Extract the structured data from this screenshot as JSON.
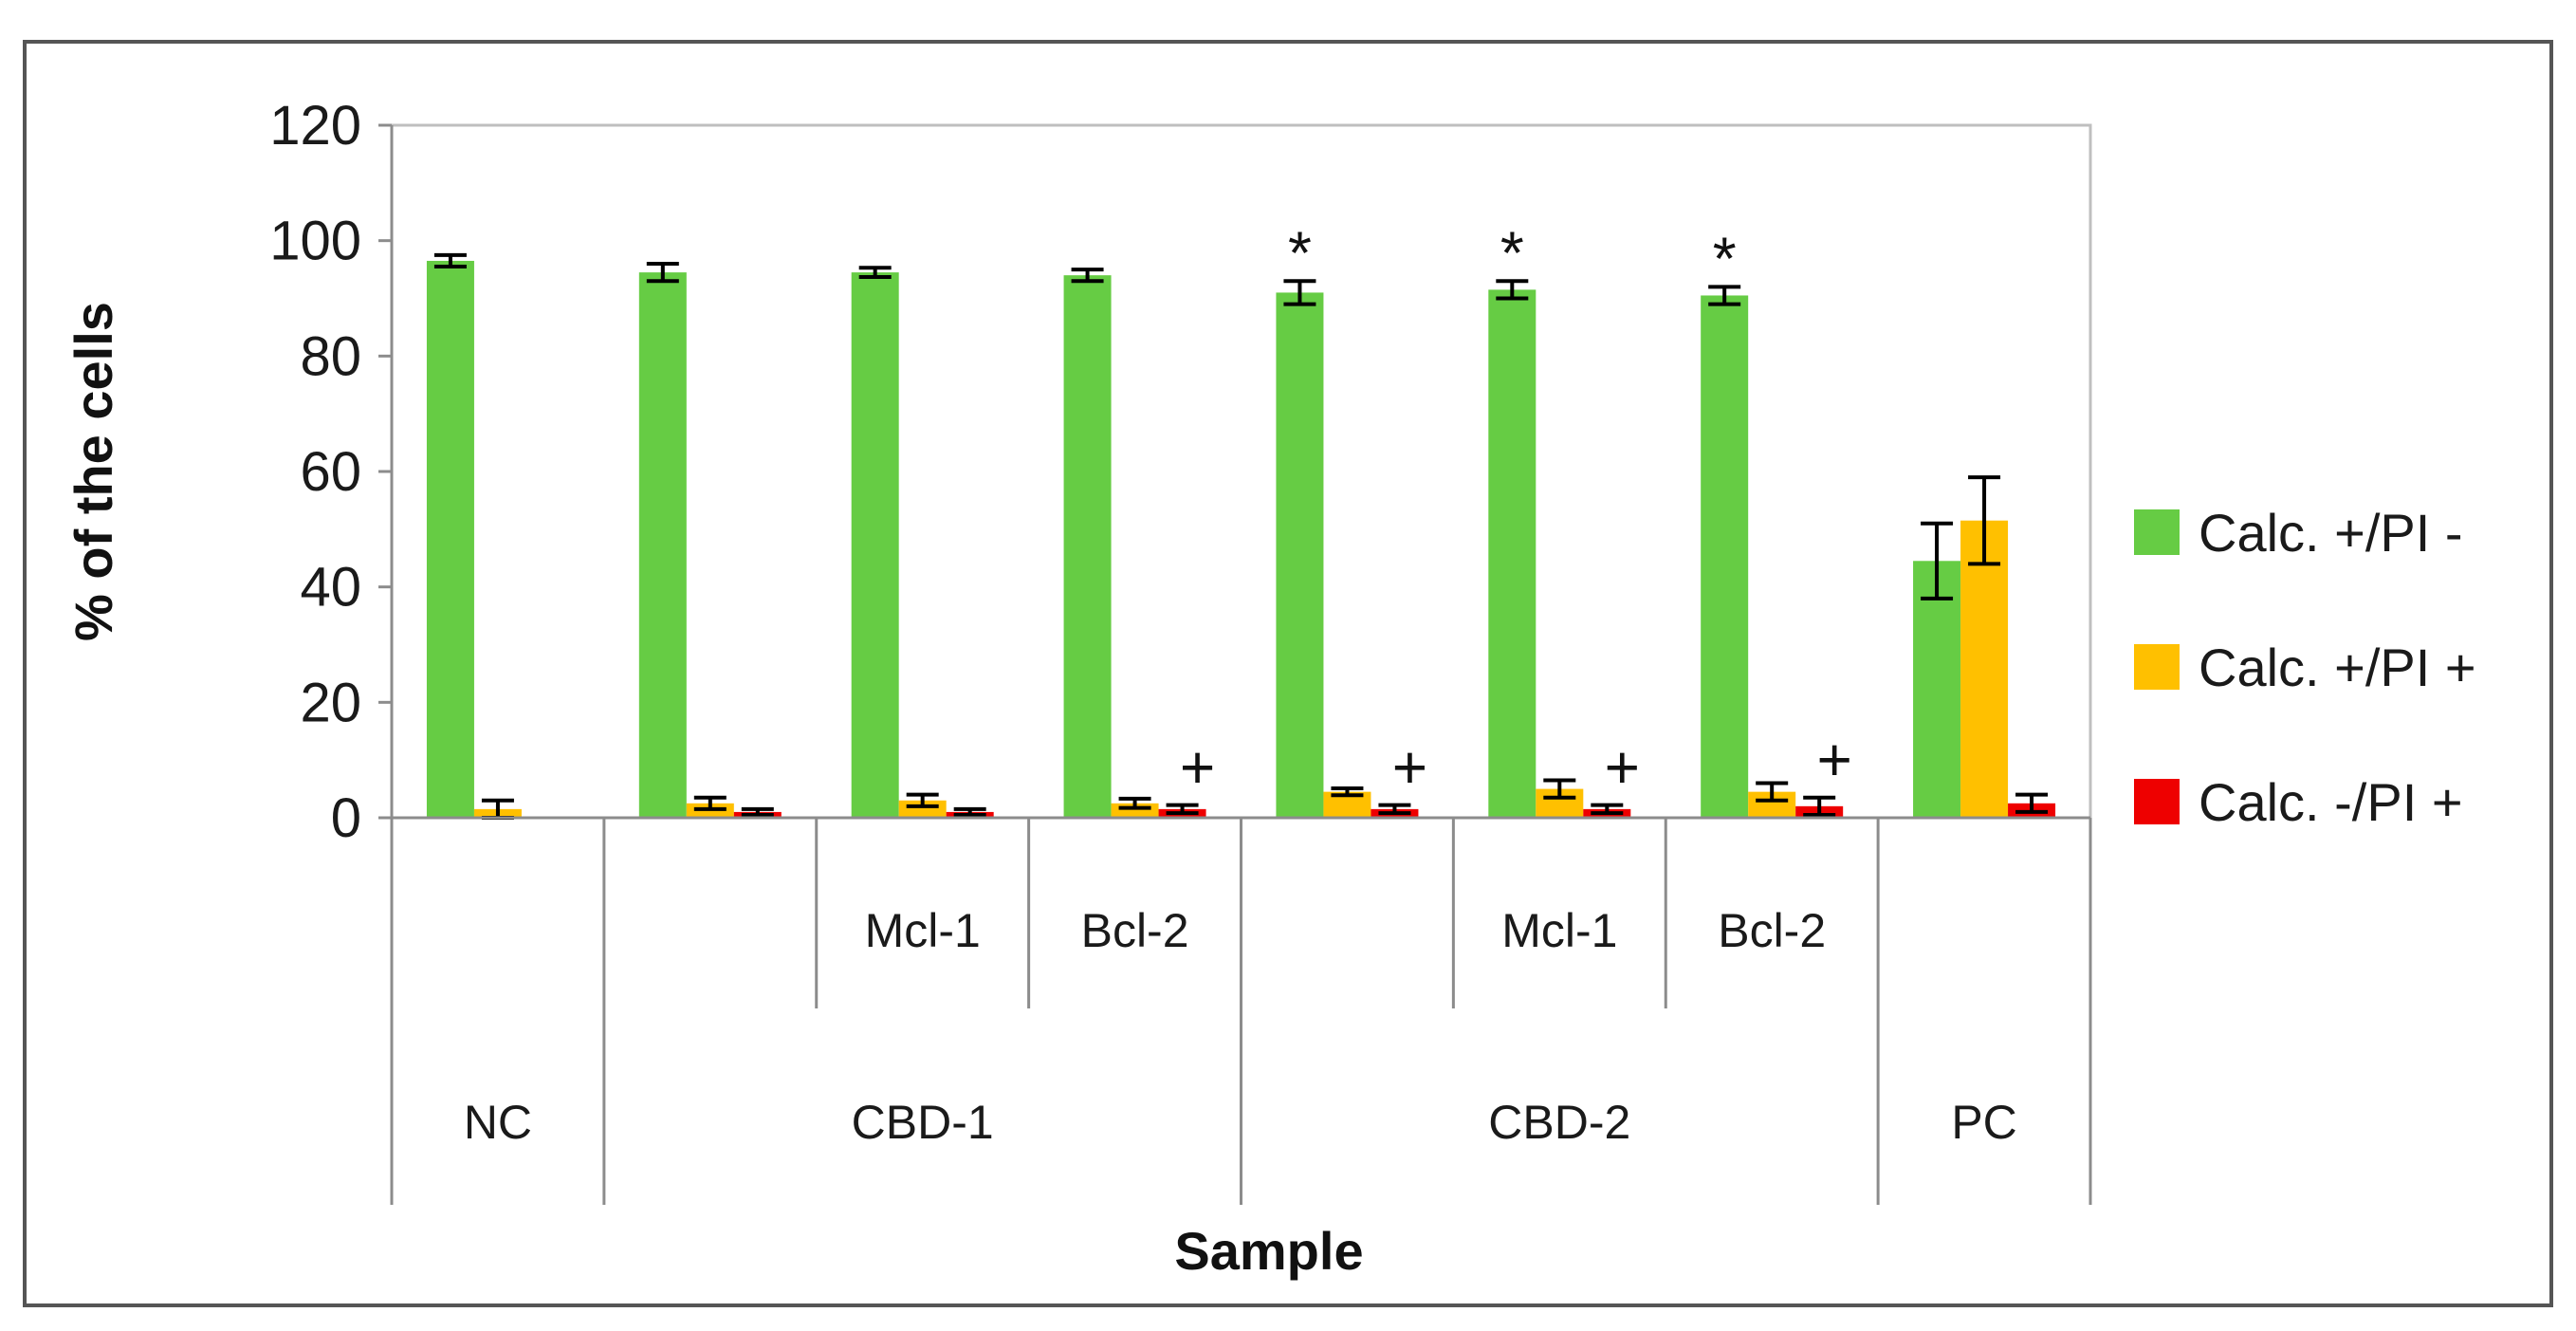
{
  "chart_data": {
    "type": "bar",
    "title": "",
    "xlabel": "Sample",
    "ylabel": "% of the cells",
    "ylim": [
      0,
      120
    ],
    "yticks": [
      0,
      20,
      40,
      60,
      80,
      100,
      120
    ],
    "grid": false,
    "legend_position": "right",
    "categories": [
      "NC",
      "CBD-1",
      "Mcl-1",
      "Bcl-2",
      "CBD-2",
      "Mcl-1",
      "Bcl-2",
      "PC"
    ],
    "category_tiers": {
      "sub_labels": [
        "",
        "",
        "Mcl-1",
        "Bcl-2",
        "",
        "Mcl-1",
        "Bcl-2",
        ""
      ],
      "groups": [
        {
          "label": "NC",
          "span": [
            0,
            0
          ]
        },
        {
          "label": "CBD-1",
          "span": [
            1,
            3
          ]
        },
        {
          "label": "CBD-2",
          "span": [
            4,
            6
          ]
        },
        {
          "label": "PC",
          "span": [
            7,
            7
          ]
        }
      ]
    },
    "series": [
      {
        "name": "Calc. +/PI -",
        "color": "#66cc44",
        "values": [
          96.5,
          94.5,
          94.5,
          94.0,
          91.0,
          91.5,
          90.5,
          44.5
        ],
        "errors": [
          1.0,
          1.5,
          0.8,
          1.0,
          2.0,
          1.5,
          1.5,
          6.5
        ]
      },
      {
        "name": "Calc. +/PI +",
        "color": "#ffc000",
        "values": [
          1.5,
          2.5,
          3.0,
          2.5,
          4.5,
          5.0,
          4.5,
          51.5
        ],
        "errors": [
          1.5,
          1.0,
          1.0,
          0.8,
          0.6,
          1.5,
          1.5,
          7.5
        ]
      },
      {
        "name": "Calc. -/PI +",
        "color": "#ee0000",
        "values": [
          0.0,
          1.0,
          1.0,
          1.5,
          1.5,
          1.5,
          2.0,
          2.5
        ],
        "errors": [
          0.0,
          0.5,
          0.5,
          0.7,
          0.7,
          0.7,
          1.5,
          1.5
        ]
      }
    ],
    "annotations": [
      {
        "series": 0,
        "category": 4,
        "text": "*"
      },
      {
        "series": 0,
        "category": 5,
        "text": "*"
      },
      {
        "series": 0,
        "category": 6,
        "text": "*"
      },
      {
        "series": 2,
        "category": 3,
        "text": "+"
      },
      {
        "series": 2,
        "category": 4,
        "text": "+"
      },
      {
        "series": 2,
        "category": 5,
        "text": "+"
      },
      {
        "series": 2,
        "category": 6,
        "text": "+"
      }
    ],
    "error_bar_color": "#000000",
    "frame_color": "#555555"
  }
}
